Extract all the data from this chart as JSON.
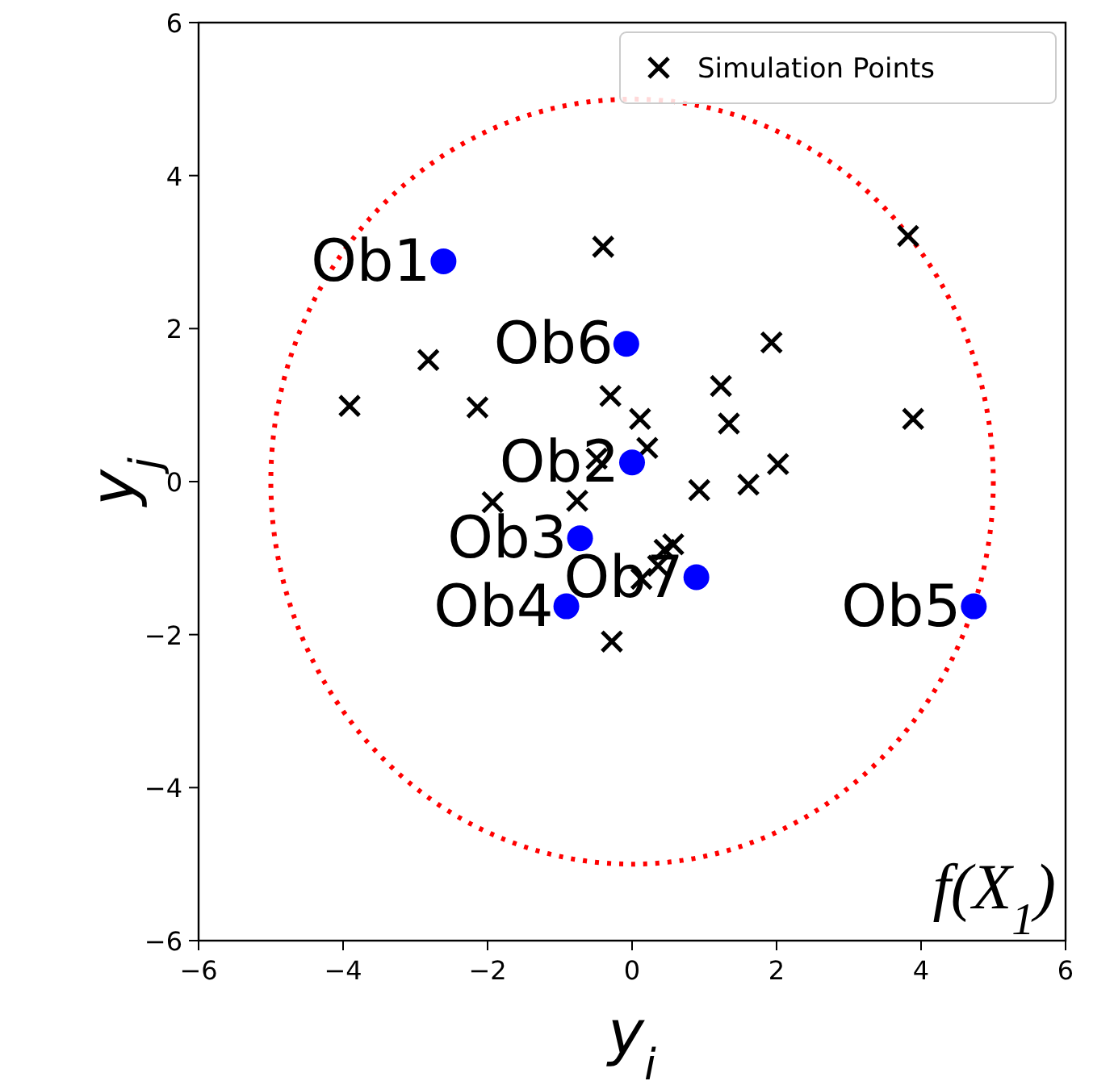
{
  "chart_data": {
    "type": "scatter",
    "xlabel": "y$_{i}$",
    "ylabel": "y$_{j}$",
    "xlim": [
      -6,
      6
    ],
    "ylim": [
      -6,
      6
    ],
    "xticks": [
      -6,
      -4,
      -2,
      0,
      2,
      4,
      6
    ],
    "yticks": [
      -6,
      -4,
      -2,
      0,
      2,
      4,
      6
    ],
    "grid": false,
    "legend": "top right",
    "series": [
      {
        "name": "Simulation Points",
        "color": "#000000",
        "marker": "cross",
        "x": [
          -0.4,
          3.82,
          -2.82,
          -3.91,
          -2.14,
          -0.3,
          0.11,
          0.21,
          -0.49,
          1.23,
          1.34,
          1.93,
          2.02,
          1.61,
          0.93,
          3.89,
          -1.93,
          -0.76,
          -0.28,
          0.45,
          0.36,
          0.13,
          0.57
        ],
        "values": [
          3.07,
          3.21,
          1.59,
          0.99,
          0.97,
          1.12,
          0.82,
          0.44,
          0.3,
          1.25,
          0.76,
          1.82,
          0.23,
          -0.04,
          -0.11,
          0.82,
          -0.27,
          -0.25,
          -2.09,
          -0.89,
          -1.1,
          -1.27,
          -0.82
        ]
      },
      {
        "color": "#0000ff",
        "marker": "circle",
        "x": [
          -2.61,
          -0.08,
          0,
          -0.72,
          -0.91,
          0.89,
          4.73
        ],
        "values": [
          2.88,
          1.8,
          0.25,
          -0.74,
          -1.63,
          -1.25,
          -1.63
        ]
      }
    ],
    "annotations": [
      {
        "text": "Ob1",
        "x": -2.61,
        "y": 2.88
      },
      {
        "text": "Ob6",
        "x": -0.08,
        "y": 1.8
      },
      {
        "text": "Ob2",
        "x": 0,
        "y": 0.25
      },
      {
        "text": "Ob3",
        "x": -0.72,
        "y": -0.74
      },
      {
        "text": "Ob4",
        "x": -0.91,
        "y": -1.63
      },
      {
        "text": "Ob7",
        "x": 0.89,
        "y": -1.25
      },
      {
        "text": "Ob5",
        "x": 4.73,
        "y": -1.63
      },
      "f(X$_{1}$)"
    ]
  }
}
